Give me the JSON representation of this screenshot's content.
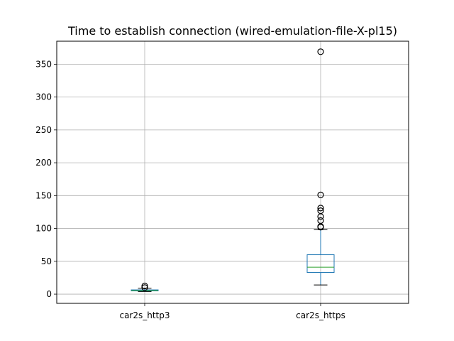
{
  "chart_data": {
    "type": "box",
    "title": "Time to establish connection (wired-emulation-file-X-pl15)",
    "xlabel": "",
    "ylabel": "",
    "ylim": [
      -14,
      385
    ],
    "yticks": [
      0,
      50,
      100,
      150,
      200,
      250,
      300,
      350
    ],
    "grid": true,
    "categories": [
      "car2s_http3",
      "car2s_https"
    ],
    "boxes": [
      {
        "category": "car2s_http3",
        "whisker_low": 4,
        "q1": 5,
        "median": 5.5,
        "q3": 6.5,
        "whisker_high": 9,
        "fliers": [
          10,
          12.5
        ]
      },
      {
        "category": "car2s_https",
        "whisker_low": 14,
        "q1": 33,
        "median": 41,
        "q3": 60,
        "whisker_high": 98,
        "fliers": [
          102,
          103,
          112,
          118,
          127,
          131,
          151,
          369
        ]
      }
    ]
  }
}
